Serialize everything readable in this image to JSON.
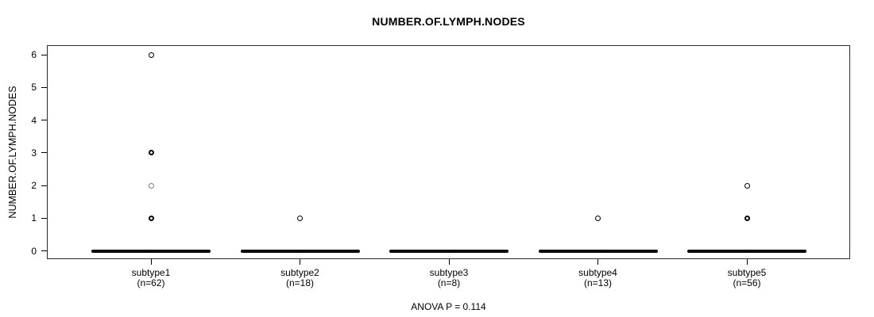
{
  "title": "NUMBER.OF.LYMPH.NODES",
  "footer": "ANOVA P = 0.114",
  "colors": {
    "foreground": "#000000",
    "background": "#ffffff",
    "light_outlier": "#7d7d7d"
  },
  "chart_data": {
    "type": "boxplot",
    "title": "NUMBER.OF.LYMPH.NODES",
    "ylabel": "NUMBER.OF.LYMPH.NODES",
    "xlabel": "",
    "annotation": "ANOVA P = 0.114",
    "anova_p": 0.114,
    "ylim": [
      0,
      6
    ],
    "y_ticks": [
      0,
      1,
      2,
      3,
      4,
      5,
      6
    ],
    "grid": false,
    "categories": [
      "subtype1",
      "subtype2",
      "subtype3",
      "subtype4",
      "subtype5"
    ],
    "sample_sizes": [
      62,
      18,
      8,
      13,
      56
    ],
    "n_labels": [
      "(n=62)",
      "(n=18)",
      "(n=8)",
      "(n=13)",
      "(n=56)"
    ],
    "boxes": [
      {
        "group": "subtype1",
        "whisker_low": 0,
        "q1": 0,
        "median": 0,
        "q3": 0,
        "whisker_high": 0,
        "outliers": [
          {
            "value": 6,
            "weight": "normal"
          },
          {
            "value": 3,
            "weight": "bold"
          },
          {
            "value": 2,
            "weight": "light"
          },
          {
            "value": 1,
            "weight": "bold"
          }
        ]
      },
      {
        "group": "subtype2",
        "whisker_low": 0,
        "q1": 0,
        "median": 0,
        "q3": 0,
        "whisker_high": 0,
        "outliers": [
          {
            "value": 1,
            "weight": "normal"
          }
        ]
      },
      {
        "group": "subtype3",
        "whisker_low": 0,
        "q1": 0,
        "median": 0,
        "q3": 0,
        "whisker_high": 0,
        "outliers": []
      },
      {
        "group": "subtype4",
        "whisker_low": 0,
        "q1": 0,
        "median": 0,
        "q3": 0,
        "whisker_high": 0,
        "outliers": [
          {
            "value": 1,
            "weight": "normal"
          }
        ]
      },
      {
        "group": "subtype5",
        "whisker_low": 0,
        "q1": 0,
        "median": 0,
        "q3": 0,
        "whisker_high": 0,
        "outliers": [
          {
            "value": 2,
            "weight": "normal"
          },
          {
            "value": 1,
            "weight": "bold"
          }
        ]
      }
    ]
  }
}
